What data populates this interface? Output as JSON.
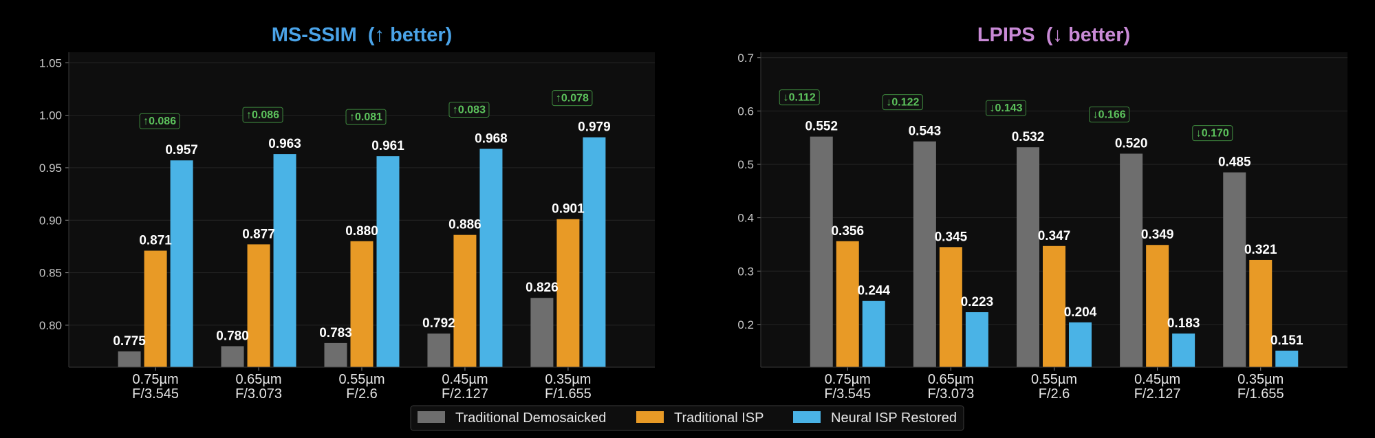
{
  "colors": {
    "demosaicked": "#6e6e6e",
    "isp": "#e89a26",
    "neural": "#4ab3e6",
    "ssim_title": "#4aa3e8",
    "lpips_title": "#c98ad6",
    "delta": "#5cc25c"
  },
  "legend": {
    "items": [
      {
        "label": "Traditional Demosaicked",
        "color": "#6e6e6e"
      },
      {
        "label": "Traditional ISP",
        "color": "#e89a26"
      },
      {
        "label": "Neural ISP Restored",
        "color": "#4ab3e6"
      }
    ]
  },
  "chart_data": [
    {
      "type": "bar",
      "title": "MS-SSIM  (↑ better)",
      "categories": [
        [
          "0.75µm",
          "F/3.545"
        ],
        [
          "0.65µm",
          "F/3.073"
        ],
        [
          "0.55µm",
          "F/2.6"
        ],
        [
          "0.45µm",
          "F/2.127"
        ],
        [
          "0.35µm",
          "F/1.655"
        ]
      ],
      "series": [
        {
          "name": "Traditional Demosaicked",
          "values": [
            0.775,
            0.78,
            0.783,
            0.792,
            0.826
          ]
        },
        {
          "name": "Traditional ISP",
          "values": [
            0.871,
            0.877,
            0.88,
            0.886,
            0.901
          ]
        },
        {
          "name": "Neural ISP Restored",
          "values": [
            0.957,
            0.963,
            0.961,
            0.968,
            0.979
          ]
        }
      ],
      "value_labels": [
        [
          "0.775",
          "0.780",
          "0.783",
          "0.792",
          "0.826"
        ],
        [
          "0.871",
          "0.877",
          "0.880",
          "0.886",
          "0.901"
        ],
        [
          "0.957",
          "0.963",
          "0.961",
          "0.968",
          "0.979"
        ]
      ],
      "deltas": [
        "↑0.086",
        "↑0.086",
        "↑0.081",
        "↑0.083",
        "↑0.078"
      ],
      "ylim": [
        0.76,
        1.06
      ],
      "yticks": [
        0.8,
        0.85,
        0.9,
        0.95,
        1.0,
        1.05
      ],
      "ytick_labels": [
        "0.80",
        "0.85",
        "0.90",
        "0.95",
        "1.00",
        "1.05"
      ],
      "grid": true
    },
    {
      "type": "bar",
      "title": "LPIPS  (↓ better)",
      "categories": [
        [
          "0.75µm",
          "F/3.545"
        ],
        [
          "0.65µm",
          "F/3.073"
        ],
        [
          "0.55µm",
          "F/2.6"
        ],
        [
          "0.45µm",
          "F/2.127"
        ],
        [
          "0.35µm",
          "F/1.655"
        ]
      ],
      "series": [
        {
          "name": "Traditional Demosaicked",
          "values": [
            0.552,
            0.543,
            0.532,
            0.52,
            0.485
          ]
        },
        {
          "name": "Traditional ISP",
          "values": [
            0.356,
            0.345,
            0.347,
            0.349,
            0.321
          ]
        },
        {
          "name": "Neural ISP Restored",
          "values": [
            0.244,
            0.223,
            0.204,
            0.183,
            0.151
          ]
        }
      ],
      "value_labels": [
        [
          "0.552",
          "0.543",
          "0.532",
          "0.520",
          "0.485"
        ],
        [
          "0.356",
          "0.345",
          "0.347",
          "0.349",
          "0.321"
        ],
        [
          "0.244",
          "0.223",
          "0.204",
          "0.183",
          "0.151"
        ]
      ],
      "deltas": [
        "↓0.112",
        "↓0.122",
        "↓0.143",
        "↓0.166",
        "↓0.170"
      ],
      "ylim": [
        0.12,
        0.71
      ],
      "yticks": [
        0.2,
        0.3,
        0.4,
        0.5,
        0.6,
        0.7
      ],
      "ytick_labels": [
        "0.2",
        "0.3",
        "0.4",
        "0.5",
        "0.6",
        "0.7"
      ],
      "grid": true
    }
  ]
}
